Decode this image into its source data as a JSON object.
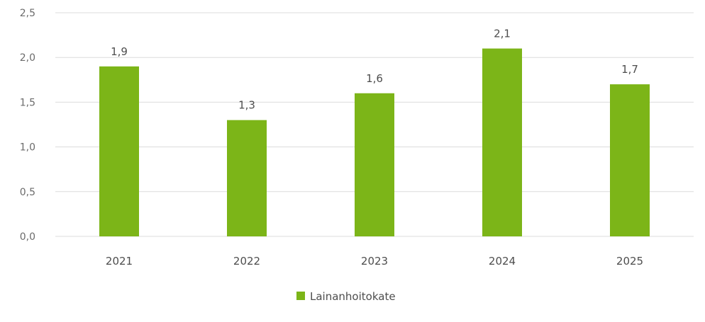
{
  "chart_data": {
    "type": "bar",
    "categories": [
      "2021",
      "2022",
      "2023",
      "2024",
      "2025"
    ],
    "series": [
      {
        "name": "Lainanhoitokate",
        "values": [
          1.9,
          1.3,
          1.6,
          2.1,
          1.7
        ]
      }
    ],
    "data_labels": [
      "1,9",
      "1,3",
      "1,6",
      "2,1",
      "1,7"
    ],
    "y_ticks": [
      0,
      0.5,
      1.0,
      1.5,
      2.0,
      2.5
    ],
    "y_tick_labels": [
      "0,0",
      "0,5",
      "1,0",
      "1,5",
      "2,0",
      "2,5"
    ],
    "ylim": [
      0,
      2.5
    ],
    "title": "",
    "xlabel": "",
    "ylabel": "",
    "grid": true,
    "legend_position": "bottom",
    "colors": {
      "bar": "#7cb518",
      "grid": "#dcdcdc"
    }
  }
}
